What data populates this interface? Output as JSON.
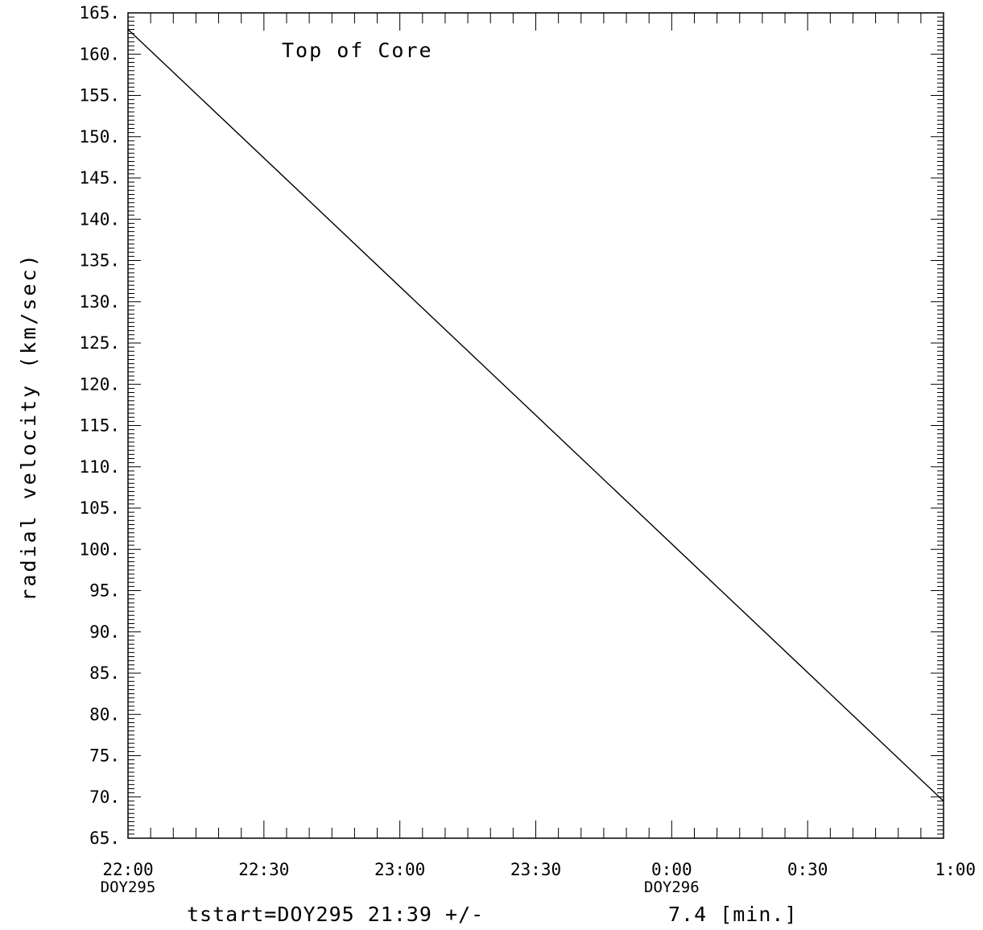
{
  "chart_data": {
    "type": "line",
    "title": "",
    "xlabel": "",
    "ylabel": "radial velocity (km/sec)",
    "annotation": "Top of Core",
    "footer_left": "tstart=DOY295 21:39 +/-",
    "footer_right": "7.4 [min.]",
    "x_unit": "hours",
    "xlim": [
      22.0,
      25.0
    ],
    "ylim": [
      65,
      165
    ],
    "y_ticks": [
      {
        "value": 165,
        "label": "165."
      },
      {
        "value": 160,
        "label": "160."
      },
      {
        "value": 155,
        "label": "155."
      },
      {
        "value": 150,
        "label": "150."
      },
      {
        "value": 145,
        "label": "145."
      },
      {
        "value": 140,
        "label": "140."
      },
      {
        "value": 135,
        "label": "135."
      },
      {
        "value": 130,
        "label": "130."
      },
      {
        "value": 125,
        "label": "125."
      },
      {
        "value": 120,
        "label": "120."
      },
      {
        "value": 115,
        "label": "115."
      },
      {
        "value": 110,
        "label": "110."
      },
      {
        "value": 105,
        "label": "105."
      },
      {
        "value": 100,
        "label": "100."
      },
      {
        "value": 95,
        "label": "95."
      },
      {
        "value": 90,
        "label": "90."
      },
      {
        "value": 85,
        "label": "85."
      },
      {
        "value": 80,
        "label": "80."
      },
      {
        "value": 75,
        "label": "75."
      },
      {
        "value": 70,
        "label": "70."
      },
      {
        "value": 65,
        "label": "65."
      }
    ],
    "x_ticks": [
      {
        "value": 22.0,
        "label": "22:00",
        "sub": "DOY295"
      },
      {
        "value": 22.5,
        "label": "22:30",
        "sub": ""
      },
      {
        "value": 23.0,
        "label": "23:00",
        "sub": ""
      },
      {
        "value": 23.5,
        "label": "23:30",
        "sub": ""
      },
      {
        "value": 24.0,
        "label": "0:00",
        "sub": "DOY296"
      },
      {
        "value": 24.5,
        "label": "0:30",
        "sub": ""
      },
      {
        "value": 25.0,
        "label": "1:00",
        "sub": ""
      }
    ],
    "series": [
      {
        "x": [
          22.0,
          25.0
        ],
        "y": [
          163.0,
          69.5
        ]
      }
    ]
  }
}
